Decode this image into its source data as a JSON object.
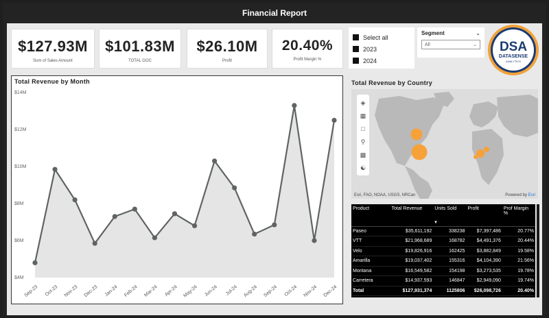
{
  "window": {
    "title": "Financial Report"
  },
  "kpis": [
    {
      "value": "$127.93M",
      "label": "Sum of Sales Amount"
    },
    {
      "value": "$101.83M",
      "label": "TOTAL GOC"
    },
    {
      "value": "$26.10M",
      "label": "Profit"
    },
    {
      "value": "20.40%",
      "label": "Profit Margin %"
    }
  ],
  "year_slicer": {
    "options": [
      "Select all",
      "2023",
      "2024"
    ]
  },
  "segment_slicer": {
    "title": "Segment",
    "value": "All"
  },
  "logo": {
    "brand": "DSA",
    "name": "DATASENSE",
    "tagline": "ANALYTICS"
  },
  "revenue_chart": {
    "title": "Total Revenue by Month",
    "chart_data": {
      "type": "area",
      "title": "Total Revenue by Month",
      "x": [
        "Sep-23",
        "Oct-23",
        "Nov-23",
        "Dec-23",
        "Jan-24",
        "Feb-24",
        "Mar-24",
        "Apr-24",
        "May-24",
        "Jun-24",
        "Jul-24",
        "Aug-24",
        "Sep-24",
        "Oct-24",
        "Nov-24",
        "Dec-24"
      ],
      "values": [
        4.8,
        9.85,
        8.2,
        5.85,
        7.3,
        7.7,
        6.15,
        7.45,
        6.8,
        10.3,
        8.85,
        6.35,
        6.85,
        13.3,
        6.0,
        12.5
      ],
      "y_ticks": [
        "$4M",
        "$6M",
        "$8M",
        "$10M",
        "$12M",
        "$14M"
      ],
      "ylim": [
        4,
        14
      ],
      "color": "#5f6462",
      "fill": "#e4e5e4"
    }
  },
  "map": {
    "title": "Total Revenue by Country",
    "attribution": "Esri, FAO, NOAA, USGS, NRCan",
    "powered_by": "Powered by",
    "esri": "Esri",
    "tools": [
      "layers-icon",
      "qr-icon",
      "select-icon",
      "search-icon",
      "chart-icon",
      "person-icon"
    ],
    "bubble_color": "#f7a13a"
  },
  "product_table": {
    "columns": [
      "Product",
      "Total Revenue",
      "Units Sold",
      "Profit",
      "Prof Margin %"
    ],
    "rows": [
      [
        "Paseo",
        "$35,611,192",
        "338238",
        "$7,397,486",
        "20.77%"
      ],
      [
        "VTT",
        "$21,968,689",
        "168782",
        "$4,491,376",
        "20.44%"
      ],
      [
        "Velo",
        "$19,826,916",
        "162425",
        "$3,882,849",
        "19.58%"
      ],
      [
        "Amarilla",
        "$19,037,402",
        "155316",
        "$4,104,390",
        "21.56%"
      ],
      [
        "Montana",
        "$16,549,582",
        "154198",
        "$3,273,535",
        "19.78%"
      ],
      [
        "Carretera",
        "$14,937,593",
        "146847",
        "$2,949,090",
        "19.74%"
      ]
    ],
    "total": [
      "Total",
      "$127,931,374",
      "1125806",
      "$26,098,726",
      "20.40%"
    ]
  }
}
